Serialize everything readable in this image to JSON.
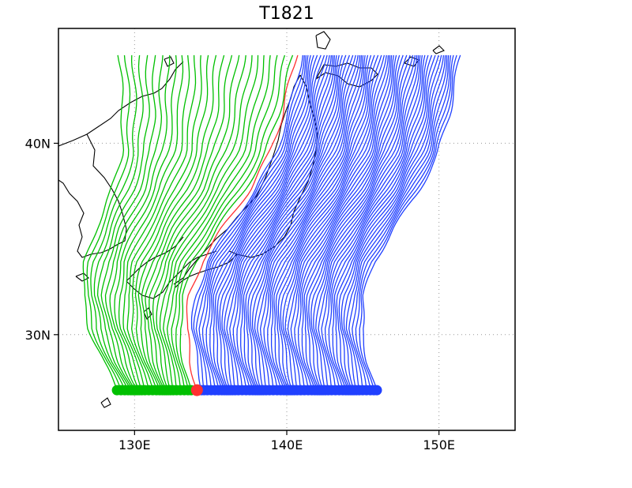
{
  "title": "T1821",
  "chart_data": {
    "type": "map-trajectories",
    "title": "T1821",
    "lon_range": [
      125,
      155
    ],
    "lat_range": [
      25,
      46
    ],
    "grid": true,
    "x_ticks": [
      {
        "value": 130,
        "label": "130E"
      },
      {
        "value": 140,
        "label": "140E"
      },
      {
        "value": 150,
        "label": "150E"
      }
    ],
    "y_ticks": [
      {
        "value": 30,
        "label": "30N"
      },
      {
        "value": 40,
        "label": "40N"
      }
    ],
    "start_lat": 27.1,
    "end_lat": 44.6,
    "reference_track": [
      [
        134.1,
        27.1
      ],
      [
        133.7,
        28.5
      ],
      [
        133.4,
        30.3
      ],
      [
        133.6,
        32.0
      ],
      [
        134.4,
        33.8
      ],
      [
        135.8,
        35.6
      ],
      [
        137.5,
        37.5
      ],
      [
        138.9,
        39.5
      ],
      [
        139.7,
        41.5
      ],
      [
        140.2,
        43.2
      ],
      [
        140.6,
        44.6
      ]
    ],
    "series": [
      {
        "color": "#00c000",
        "start_lon": [
          128.9,
          133.6
        ],
        "end_lon": [
          129.0,
          140.4
        ],
        "count": 26
      },
      {
        "color": "#2040ff",
        "start_lon": [
          134.5,
          145.8
        ],
        "end_lon": [
          141.0,
          151.4
        ],
        "count": 62
      },
      {
        "color": "#ff3030",
        "start_lon": [
          134.1,
          134.1
        ],
        "end_lon": [
          140.6,
          140.6
        ],
        "count": 1
      }
    ]
  }
}
